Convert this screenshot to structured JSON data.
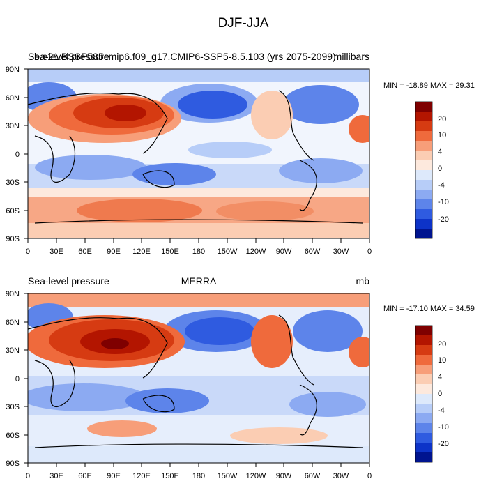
{
  "figure": {
    "title": "DJF-JJA"
  },
  "chart_data": [
    {
      "type": "heatmap",
      "map": "global sea-level pressure difference",
      "title_left": "Sea-level pressure",
      "title_overlap_full": "b.e21.BSSP585cmip6.f09_g17.CMIP6-SSP5-8.5.103 (yrs 2075-2099)",
      "title_center": "",
      "units": "millibars",
      "stats": "MIN = -18.89 MAX =  29.31",
      "x_ticks": [
        "0",
        "30E",
        "60E",
        "90E",
        "120E",
        "150E",
        "180",
        "150W",
        "120W",
        "90W",
        "60W",
        "30W",
        "0"
      ],
      "y_ticks": [
        "90N",
        "60N",
        "30N",
        "0",
        "30S",
        "60S",
        "90S"
      ],
      "xlim": [
        0,
        360
      ],
      "ylim": [
        -90,
        90
      ],
      "colorbar_labels": [
        "20",
        "10",
        "4",
        "0",
        "-4",
        "-10",
        "-20"
      ]
    },
    {
      "type": "heatmap",
      "map": "global sea-level pressure difference",
      "title_left": "Sea-level pressure",
      "title_center": "MERRA",
      "units": "mb",
      "stats": "MIN = -17.10 MAX =  34.59",
      "x_ticks": [
        "0",
        "30E",
        "60E",
        "90E",
        "120E",
        "150E",
        "180",
        "150W",
        "120W",
        "90W",
        "60W",
        "30W",
        "0"
      ],
      "y_ticks": [
        "90N",
        "60N",
        "30N",
        "0",
        "30S",
        "60S",
        "90S"
      ],
      "xlim": [
        0,
        360
      ],
      "ylim": [
        -90,
        90
      ],
      "colorbar_labels": [
        "20",
        "10",
        "4",
        "0",
        "-4",
        "-10",
        "-20"
      ]
    }
  ],
  "colorbar_colors": [
    "#7f0000",
    "#b31500",
    "#d63b12",
    "#ef6a3c",
    "#f79e79",
    "#fbcdb3",
    "#fde9dd",
    "#dde9fb",
    "#b7cdf8",
    "#8caaf2",
    "#5d84ea",
    "#2f5be0",
    "#0d33c8",
    "#00148f"
  ]
}
